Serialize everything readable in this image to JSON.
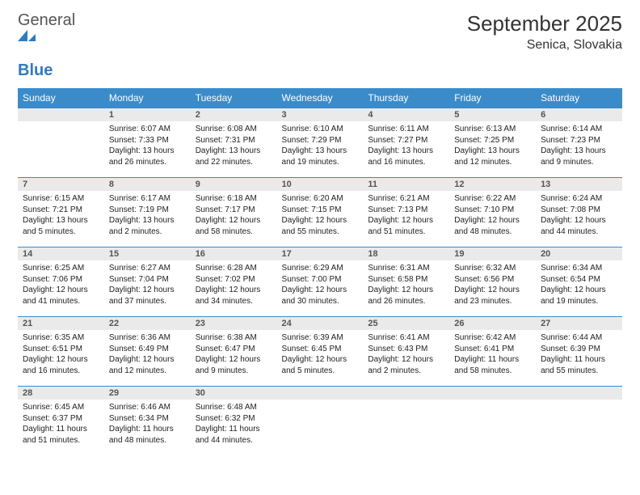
{
  "logo": {
    "word1": "General",
    "word2": "Blue"
  },
  "title": "September 2025",
  "location": "Senica, Slovakia",
  "colors": {
    "header_bg": "#3b8bc9",
    "header_text": "#ffffff",
    "daynum_bg": "#eaeaea",
    "daynum_border": "#3b8bc9",
    "text": "#222222",
    "logo_gray": "#555555",
    "logo_blue": "#2f7bbf",
    "page_bg": "#ffffff"
  },
  "weekdays": [
    "Sunday",
    "Monday",
    "Tuesday",
    "Wednesday",
    "Thursday",
    "Friday",
    "Saturday"
  ],
  "weeks": [
    [
      {
        "day": "",
        "empty": true,
        "sunrise": "",
        "sunset": "",
        "daylight": ""
      },
      {
        "day": "1",
        "sunrise": "Sunrise: 6:07 AM",
        "sunset": "Sunset: 7:33 PM",
        "daylight": "Daylight: 13 hours and 26 minutes."
      },
      {
        "day": "2",
        "sunrise": "Sunrise: 6:08 AM",
        "sunset": "Sunset: 7:31 PM",
        "daylight": "Daylight: 13 hours and 22 minutes."
      },
      {
        "day": "3",
        "sunrise": "Sunrise: 6:10 AM",
        "sunset": "Sunset: 7:29 PM",
        "daylight": "Daylight: 13 hours and 19 minutes."
      },
      {
        "day": "4",
        "sunrise": "Sunrise: 6:11 AM",
        "sunset": "Sunset: 7:27 PM",
        "daylight": "Daylight: 13 hours and 16 minutes."
      },
      {
        "day": "5",
        "sunrise": "Sunrise: 6:13 AM",
        "sunset": "Sunset: 7:25 PM",
        "daylight": "Daylight: 13 hours and 12 minutes."
      },
      {
        "day": "6",
        "sunrise": "Sunrise: 6:14 AM",
        "sunset": "Sunset: 7:23 PM",
        "daylight": "Daylight: 13 hours and 9 minutes."
      }
    ],
    [
      {
        "day": "7",
        "sunrise": "Sunrise: 6:15 AM",
        "sunset": "Sunset: 7:21 PM",
        "daylight": "Daylight: 13 hours and 5 minutes."
      },
      {
        "day": "8",
        "sunrise": "Sunrise: 6:17 AM",
        "sunset": "Sunset: 7:19 PM",
        "daylight": "Daylight: 13 hours and 2 minutes."
      },
      {
        "day": "9",
        "sunrise": "Sunrise: 6:18 AM",
        "sunset": "Sunset: 7:17 PM",
        "daylight": "Daylight: 12 hours and 58 minutes."
      },
      {
        "day": "10",
        "sunrise": "Sunrise: 6:20 AM",
        "sunset": "Sunset: 7:15 PM",
        "daylight": "Daylight: 12 hours and 55 minutes."
      },
      {
        "day": "11",
        "sunrise": "Sunrise: 6:21 AM",
        "sunset": "Sunset: 7:13 PM",
        "daylight": "Daylight: 12 hours and 51 minutes."
      },
      {
        "day": "12",
        "sunrise": "Sunrise: 6:22 AM",
        "sunset": "Sunset: 7:10 PM",
        "daylight": "Daylight: 12 hours and 48 minutes."
      },
      {
        "day": "13",
        "sunrise": "Sunrise: 6:24 AM",
        "sunset": "Sunset: 7:08 PM",
        "daylight": "Daylight: 12 hours and 44 minutes."
      }
    ],
    [
      {
        "day": "14",
        "sunrise": "Sunrise: 6:25 AM",
        "sunset": "Sunset: 7:06 PM",
        "daylight": "Daylight: 12 hours and 41 minutes."
      },
      {
        "day": "15",
        "sunrise": "Sunrise: 6:27 AM",
        "sunset": "Sunset: 7:04 PM",
        "daylight": "Daylight: 12 hours and 37 minutes."
      },
      {
        "day": "16",
        "sunrise": "Sunrise: 6:28 AM",
        "sunset": "Sunset: 7:02 PM",
        "daylight": "Daylight: 12 hours and 34 minutes."
      },
      {
        "day": "17",
        "sunrise": "Sunrise: 6:29 AM",
        "sunset": "Sunset: 7:00 PM",
        "daylight": "Daylight: 12 hours and 30 minutes."
      },
      {
        "day": "18",
        "sunrise": "Sunrise: 6:31 AM",
        "sunset": "Sunset: 6:58 PM",
        "daylight": "Daylight: 12 hours and 26 minutes."
      },
      {
        "day": "19",
        "sunrise": "Sunrise: 6:32 AM",
        "sunset": "Sunset: 6:56 PM",
        "daylight": "Daylight: 12 hours and 23 minutes."
      },
      {
        "day": "20",
        "sunrise": "Sunrise: 6:34 AM",
        "sunset": "Sunset: 6:54 PM",
        "daylight": "Daylight: 12 hours and 19 minutes."
      }
    ],
    [
      {
        "day": "21",
        "sunrise": "Sunrise: 6:35 AM",
        "sunset": "Sunset: 6:51 PM",
        "daylight": "Daylight: 12 hours and 16 minutes."
      },
      {
        "day": "22",
        "sunrise": "Sunrise: 6:36 AM",
        "sunset": "Sunset: 6:49 PM",
        "daylight": "Daylight: 12 hours and 12 minutes."
      },
      {
        "day": "23",
        "sunrise": "Sunrise: 6:38 AM",
        "sunset": "Sunset: 6:47 PM",
        "daylight": "Daylight: 12 hours and 9 minutes."
      },
      {
        "day": "24",
        "sunrise": "Sunrise: 6:39 AM",
        "sunset": "Sunset: 6:45 PM",
        "daylight": "Daylight: 12 hours and 5 minutes."
      },
      {
        "day": "25",
        "sunrise": "Sunrise: 6:41 AM",
        "sunset": "Sunset: 6:43 PM",
        "daylight": "Daylight: 12 hours and 2 minutes."
      },
      {
        "day": "26",
        "sunrise": "Sunrise: 6:42 AM",
        "sunset": "Sunset: 6:41 PM",
        "daylight": "Daylight: 11 hours and 58 minutes."
      },
      {
        "day": "27",
        "sunrise": "Sunrise: 6:44 AM",
        "sunset": "Sunset: 6:39 PM",
        "daylight": "Daylight: 11 hours and 55 minutes."
      }
    ],
    [
      {
        "day": "28",
        "sunrise": "Sunrise: 6:45 AM",
        "sunset": "Sunset: 6:37 PM",
        "daylight": "Daylight: 11 hours and 51 minutes."
      },
      {
        "day": "29",
        "sunrise": "Sunrise: 6:46 AM",
        "sunset": "Sunset: 6:34 PM",
        "daylight": "Daylight: 11 hours and 48 minutes."
      },
      {
        "day": "30",
        "sunrise": "Sunrise: 6:48 AM",
        "sunset": "Sunset: 6:32 PM",
        "daylight": "Daylight: 11 hours and 44 minutes."
      },
      {
        "day": "",
        "empty": true,
        "sunrise": "",
        "sunset": "",
        "daylight": ""
      },
      {
        "day": "",
        "empty": true,
        "sunrise": "",
        "sunset": "",
        "daylight": ""
      },
      {
        "day": "",
        "empty": true,
        "sunrise": "",
        "sunset": "",
        "daylight": ""
      },
      {
        "day": "",
        "empty": true,
        "sunrise": "",
        "sunset": "",
        "daylight": ""
      }
    ]
  ]
}
